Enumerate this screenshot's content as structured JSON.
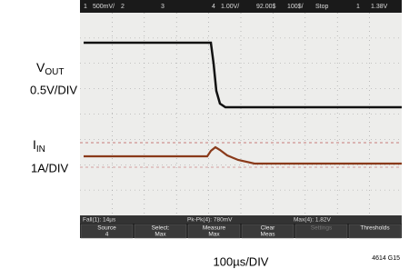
{
  "labels": {
    "vout": {
      "main": "V",
      "sub": "OUT"
    },
    "vout_scale": "0.5V/DIV",
    "iin": {
      "main": "I",
      "sub": "IN"
    },
    "iin_scale": "1A/DIV"
  },
  "status_bar": {
    "ch1": "1",
    "ch1_scale": "500mV/",
    "ch2": "2",
    "ch3": "3",
    "ch4": "4",
    "ch4_scale": "1.00V/",
    "delay": "92.00$",
    "timebase": "100$/",
    "state": "Stop",
    "trigger_ch": "1",
    "trigger_level": "1.38V"
  },
  "measurements": [
    "Fall(1): 14µs",
    "Pk-Pk(4): 780mV",
    "Max(4): 1.82V"
  ],
  "menu": [
    {
      "top": "Source",
      "bottom": "4"
    },
    {
      "top": "Select:",
      "bottom": "Max"
    },
    {
      "top": "Measure",
      "bottom": "Max"
    },
    {
      "top": "Clear",
      "bottom": "Meas"
    },
    {
      "top": "Settings",
      "bottom": ""
    },
    {
      "top": "Thresholds",
      "bottom": ""
    }
  ],
  "time_scale": "100µs/DIV",
  "figure_id": "4614 G15"
}
